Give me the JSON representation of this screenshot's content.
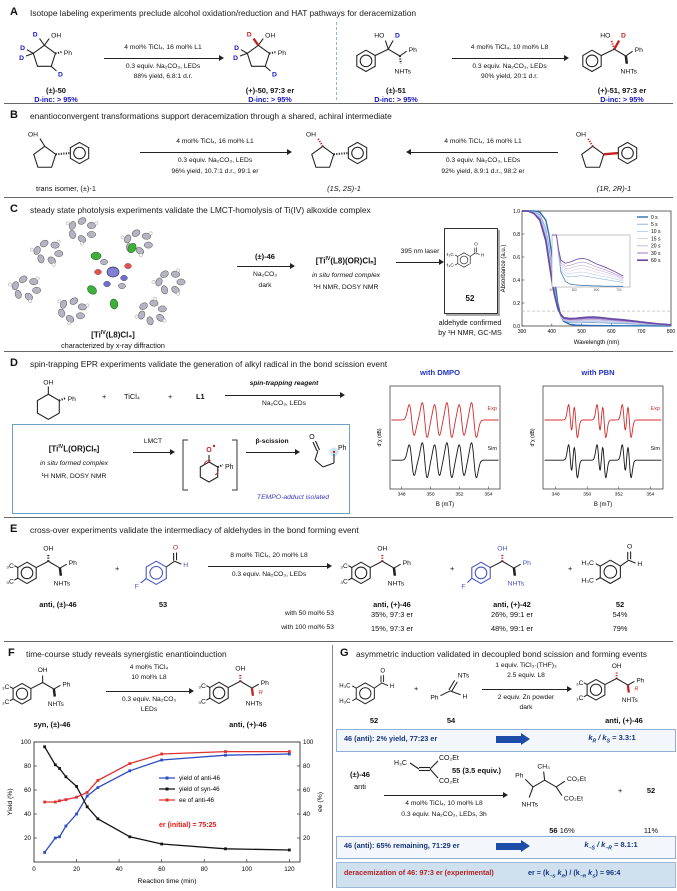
{
  "chem": {
    "oh": "OH",
    "ho": "HO",
    "ph": "Ph",
    "d": "D",
    "nhts": "NHTs",
    "nts": "NTs",
    "h3c": "H₃C",
    "ch3": "CH₃",
    "f": "F",
    "o": "O",
    "h": "H",
    "co2et": "CO₂Et",
    "r": "R",
    "plus": "+"
  },
  "a": {
    "letter": "A",
    "title": "Isotope labeling experiments preclude alcohol oxidation/reduction and HAT pathways for deracemization",
    "l": {
      "name": "(±)-50",
      "dinc": "D-inc: > 95%",
      "c1": "4 mol% TiCl₄, 16 mol% L1",
      "c2": "0.3 equiv. Na₂CO₃, LEDs",
      "c3": "88% yield, 6.8:1 d.r.",
      "pname": "(+)-50, 97:3 er",
      "pdinc": "D-inc: > 95%"
    },
    "r": {
      "name": "(±)-51",
      "dinc": "D-inc: > 95%",
      "c1": "4 mol% TiCl₄, 10 mol% L8",
      "c2": "0.3 equiv. Na₂CO₃, LEDs",
      "c3": "90% yield, 20:1 d.r.",
      "pname": "(+)-51, 97:3 er",
      "pdinc": "D-inc: > 95%"
    }
  },
  "b": {
    "letter": "B",
    "title": "enantioconvergent transformations support deracemization through a shared, achiral intermediate",
    "left_name": "trans isomer, (±)-1",
    "f1": "4 mol% TiCl₄, 16 mol% L1",
    "f2": "0.3 equiv. Na₂CO₃, LEDs",
    "f3": "96% yield, 10.7:1 d.r., 99:1 er",
    "mid_name": "(1S, 2S)-1",
    "r1": "4 mol% TiCl₄, 16 mol% L1",
    "r2": "0.3 equiv. Na₂CO₃, LEDs",
    "r3": "92% yield, 8.9:1 d.r., 98:2 er",
    "right_name": "(1R, 2R)-1"
  },
  "c": {
    "letter": "C",
    "title": "steady state photolysis experiments validate the LMCT-homolysis of Ti(IV) alkoxide complex",
    "xp1": "[Ti",
    "xsup": "IV",
    "xp2": "(L8)Cl₄]",
    "xcap": "characterized by x-ray diffraction",
    "above1": "(±)-46",
    "below1": "Na₂CO₃",
    "below2": "dark",
    "cp1": "[Ti",
    "csup": "IV",
    "cp2": "(L8)(OR)Clₙ]",
    "cnote1": "in situ formed complex",
    "cnote2": "¹H NMR, DOSY NMR",
    "laser": "395 nm laser",
    "pnum": "52",
    "pcap1": "aldehyde confirmed",
    "pcap2": "by ¹H NMR, GC-MS"
  },
  "d": {
    "letter": "D",
    "title": "spin-trapping EPR experiments validate the generation of alkyl radical in the bond scission event",
    "plus": "+",
    "ticl4": "TiCl₄",
    "l1": "L1",
    "atop": "spin-trapping reagent",
    "abot": "Na₂CO₃, LEDs",
    "bp1": "[Ti",
    "bsup": "IV",
    "bp2": "L(OR)Clₙ]",
    "note1": "in situ formed complex",
    "note2": "¹H NMR, DOSY NMR",
    "lmct": "LMCT",
    "bsc": "β-scission",
    "tempo": "TEMPO-adduct isolated"
  },
  "e": {
    "letter": "E",
    "title": "cross-over experiments validate the intermediacy of aldehydes in the bond forming event",
    "r1name": "anti, (±)-46",
    "plus": "+",
    "r2name": "53",
    "c1": "8 mol% TiCl₄, 20 mol% L8",
    "c2": "0.3 equiv. Na₂CO₃, LEDs",
    "row1": "with 50 mol% 53",
    "row2": "with 100 mol% 53",
    "p1name": "anti, (+)-46",
    "p1v1": "35%, 97:3 er",
    "p1v2": "15%, 97:3 er",
    "p2name": "anti, (+)-42",
    "p2v1": "26%, 99:1 er",
    "p2v2": "48%, 99:1 er",
    "p3name": "52",
    "p3v1": "54%",
    "p3v2": "79%"
  },
  "f": {
    "letter": "F",
    "title": "time-course study reveals synergistic enantioinduction",
    "rname": "syn, (±)-46",
    "c1": "4 mol% TiCl₄",
    "c2": "10 mol% L8",
    "c3": "0.3 equiv. Na₂CO₃",
    "c4": "LEDs",
    "pname": "anti, (+)-46"
  },
  "g": {
    "letter": "G",
    "title": "asymmetric induction validated in decoupled bond scission and forming events",
    "r1name": "52",
    "plus": "+",
    "r2name": "54",
    "c1": "1 equiv. TiCl₃·(THF)₃",
    "c2": "2.5 equiv. L8",
    "c3": "2 equiv. Zn powder",
    "c4": "dark",
    "p1name": "anti, (+)-46",
    "box1_left": "46 (anti): 2% yield, 77:23 er",
    "k1": {
      "p1": "k",
      "s1": "R",
      "p2": " / k",
      "s2": "S",
      "p3": " = 3.3:1"
    },
    "r3name": "(±)-46",
    "r3sub": "anti",
    "reagent55": "55 (3.5 equiv.)",
    "c5": "4 mol% TiCl₄, 10 mol% L8",
    "c6": "0.3 equiv. Na₂CO₃, LEDs, 3h",
    "p2name": "56",
    "p2y": "16%",
    "plus2": "+",
    "p3name": "52",
    "p3y": "11%",
    "box2_left": "46 (anti): 65% remaining, 71:29 er",
    "k2": {
      "p1": "k",
      "s1": "−S",
      "p2": " / k",
      "s2": "−R",
      "p3": " = 8.1:1"
    },
    "box3_left": "deracemization of 46:  97:3 er (experimental)",
    "k3": {
      "p1": "er = (k",
      "s1": "−S",
      "p2": " k",
      "s2": "R",
      "p3": ") / (k",
      "s3": "−R",
      "p4": " k",
      "s4": "S",
      "p5": ") = 96:4"
    }
  },
  "chart_data": [
    {
      "id": "uvvis",
      "type": "line",
      "title": "",
      "xlabel": "Wavelength (nm)",
      "ylabel": "Absorbance (a.u.)",
      "xlim": [
        300,
        800
      ],
      "ylim": [
        0,
        1.0
      ],
      "xticks": [
        300,
        400,
        500,
        600,
        700,
        800
      ],
      "yticks": [
        0,
        0.2,
        0.4,
        0.6,
        0.8,
        1.0
      ],
      "ref_line_y": 0.13,
      "inset": {
        "xlim": [
          400,
          750
        ],
        "ylim": [
          0,
          0.14
        ]
      },
      "legend_position": "top-right",
      "x": [
        300,
        320,
        340,
        360,
        380,
        390,
        400,
        410,
        420,
        430,
        440,
        460,
        480,
        500,
        520,
        540,
        560,
        580,
        600,
        640,
        680,
        720,
        760,
        800
      ],
      "series": [
        {
          "name": "0 s",
          "color": "#2e6db4",
          "width": 1.4,
          "values": [
            1,
            1,
            1,
            0.99,
            0.92,
            0.8,
            0.62,
            0.4,
            0.2,
            0.09,
            0.04,
            0.015,
            0.008,
            0.006,
            0.005,
            0.004,
            0.004,
            0.003,
            0.003,
            0.002,
            0.002,
            0.002,
            0.001,
            0.001
          ]
        },
        {
          "name": "5 s",
          "color": "#74a3d6",
          "width": 0.8,
          "values": [
            1,
            1,
            0.99,
            0.97,
            0.85,
            0.7,
            0.52,
            0.33,
            0.17,
            0.08,
            0.045,
            0.03,
            0.027,
            0.028,
            0.03,
            0.03,
            0.028,
            0.026,
            0.024,
            0.02,
            0.016,
            0.012,
            0.008,
            0.005
          ]
        },
        {
          "name": "10 s",
          "color": "#a9c6e6",
          "width": 0.8,
          "values": [
            1,
            1,
            0.99,
            0.96,
            0.82,
            0.66,
            0.48,
            0.3,
            0.16,
            0.085,
            0.05,
            0.038,
            0.036,
            0.038,
            0.04,
            0.04,
            0.038,
            0.035,
            0.032,
            0.027,
            0.022,
            0.016,
            0.01,
            0.006
          ]
        },
        {
          "name": "15 s",
          "color": "#cfc8e6",
          "width": 0.8,
          "values": [
            1,
            1,
            0.99,
            0.95,
            0.8,
            0.63,
            0.45,
            0.28,
            0.155,
            0.09,
            0.055,
            0.044,
            0.043,
            0.046,
            0.049,
            0.05,
            0.047,
            0.044,
            0.04,
            0.034,
            0.027,
            0.019,
            0.012,
            0.007
          ]
        },
        {
          "name": "20 s",
          "color": "#b9a6d6",
          "width": 0.8,
          "values": [
            1,
            1,
            0.98,
            0.94,
            0.78,
            0.61,
            0.43,
            0.27,
            0.15,
            0.09,
            0.06,
            0.05,
            0.05,
            0.054,
            0.057,
            0.058,
            0.055,
            0.051,
            0.047,
            0.04,
            0.032,
            0.022,
            0.014,
            0.008
          ]
        },
        {
          "name": "30 s",
          "color": "#9a79c4",
          "width": 1.0,
          "values": [
            1,
            1,
            0.98,
            0.93,
            0.76,
            0.59,
            0.41,
            0.26,
            0.15,
            0.095,
            0.065,
            0.056,
            0.058,
            0.062,
            0.066,
            0.067,
            0.064,
            0.059,
            0.054,
            0.046,
            0.036,
            0.025,
            0.016,
            0.009
          ]
        },
        {
          "name": "60 s",
          "color": "#6a4aa4",
          "width": 1.7,
          "values": [
            1,
            1,
            0.98,
            0.92,
            0.74,
            0.57,
            0.4,
            0.26,
            0.155,
            0.1,
            0.072,
            0.064,
            0.067,
            0.072,
            0.076,
            0.077,
            0.074,
            0.068,
            0.062,
            0.053,
            0.042,
            0.029,
            0.018,
            0.01
          ]
        }
      ]
    },
    {
      "id": "epr-dmpo",
      "type": "line",
      "title": "with DMPO",
      "xlabel": "B (mT)",
      "ylabel": "d″χ (dB)",
      "xlim": [
        347.2,
        354.8
      ],
      "xticks": [
        348,
        350,
        352,
        354
      ],
      "peaks": [
        348.7,
        349.6,
        350.45,
        351.3,
        352.15,
        353.0
      ],
      "peak_width": 0.17,
      "series": [
        {
          "name": "Exp",
          "color": "#d22c2c"
        },
        {
          "name": "Sim",
          "color": "#151515"
        }
      ]
    },
    {
      "id": "epr-pbn",
      "type": "line",
      "title": "with PBN",
      "xlabel": "B (mT)",
      "ylabel": "d″χ (dB)",
      "xlim": [
        347.2,
        354.8
      ],
      "xticks": [
        348,
        350,
        352,
        354
      ],
      "peaks": [
        348.93,
        349.27,
        350.73,
        351.07,
        352.33,
        352.67
      ],
      "peak_width": 0.11,
      "series": [
        {
          "name": "Exp",
          "color": "#d22c2c"
        },
        {
          "name": "Sim",
          "color": "#151515"
        }
      ]
    },
    {
      "id": "timecourse",
      "type": "line",
      "xlabel": "Reaction time (min)",
      "ylabel_left": "Yield (%)",
      "ylabel_right": "ee (%)",
      "xlim": [
        0,
        125
      ],
      "ylim": [
        0,
        100
      ],
      "xticks": [
        0,
        20,
        40,
        60,
        80,
        100,
        120
      ],
      "yticks": [
        20,
        40,
        60,
        80,
        100
      ],
      "x": [
        5,
        10,
        12,
        15,
        20,
        25,
        30,
        45,
        60,
        90,
        120
      ],
      "series": [
        {
          "name": "yield of anti-46",
          "color": "#2b4cc4",
          "values": [
            8,
            20,
            21,
            30,
            40,
            55,
            62,
            76,
            85,
            89,
            90
          ]
        },
        {
          "name": "yield of syn-46",
          "color": "#151515",
          "values": [
            96,
            81,
            78,
            71,
            63,
            46,
            36,
            21,
            15,
            11,
            10
          ]
        },
        {
          "name": "ee of anti-46",
          "color": "#e03030",
          "values": [
            50,
            50,
            51,
            52,
            54,
            58,
            68,
            82,
            90,
            92,
            92
          ]
        }
      ],
      "annotation": "er (initial) = 75:25",
      "annotation_color": "#e01818",
      "legend_position": "right-center"
    }
  ]
}
